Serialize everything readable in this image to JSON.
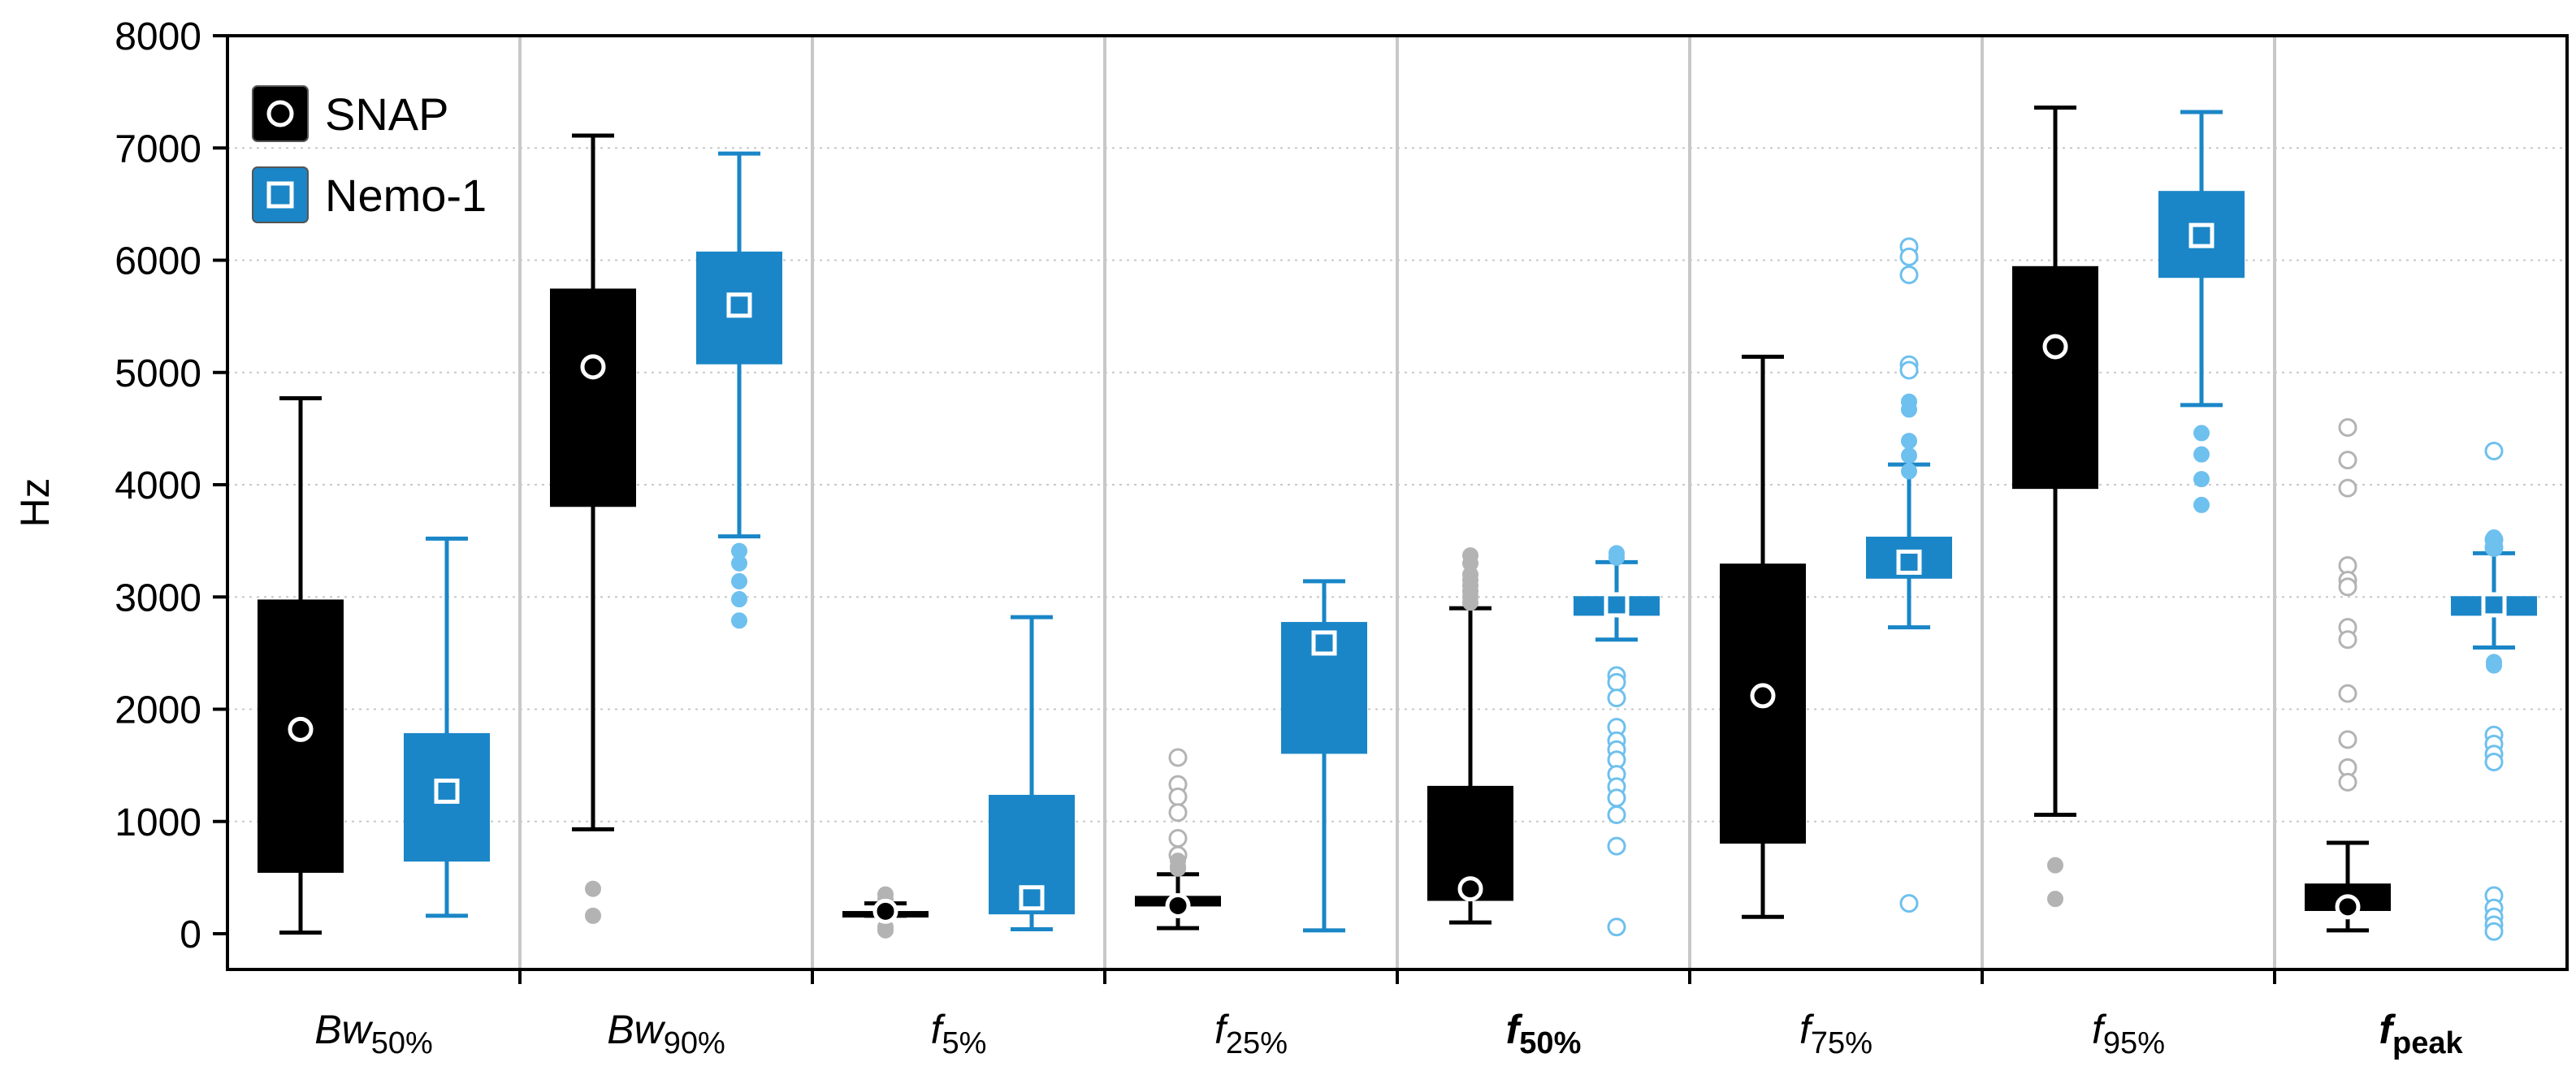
{
  "chart_data": {
    "type": "boxplot",
    "ylabel": "Hz",
    "ylim": [
      0,
      8000
    ],
    "yticks": [
      0,
      1000,
      2000,
      3000,
      4000,
      5000,
      6000,
      7000,
      8000
    ],
    "grid": "horizontal dotted + vertical group separators",
    "legend_position": "top-left",
    "categories": [
      {
        "label": "Bw",
        "sub": "50%",
        "style": "italic"
      },
      {
        "label": "Bw",
        "sub": "90%",
        "style": "italic"
      },
      {
        "label": "f",
        "sub": "5%",
        "style": "italic"
      },
      {
        "label": "f",
        "sub": "25%",
        "style": "italic"
      },
      {
        "label": "f",
        "sub": "50%",
        "style": "bold-italic"
      },
      {
        "label": "f",
        "sub": "75%",
        "style": "italic"
      },
      {
        "label": "f",
        "sub": "95%",
        "style": "italic"
      },
      {
        "label": "f",
        "sub": "peak",
        "style": "bold-italic"
      }
    ],
    "series": [
      {
        "name": "SNAP",
        "color": "#000000",
        "outlier_color": "#b3b3b3",
        "marker": "circle",
        "boxes": [
          {
            "whisker_low": 10,
            "q1": 550,
            "q3": 2970,
            "whisker_high": 4770,
            "mean": 1820,
            "outliers": [],
            "outliers_filled": []
          },
          {
            "whisker_low": 930,
            "q1": 3810,
            "q3": 5740,
            "whisker_high": 7110,
            "mean": 5050,
            "outliers": [],
            "outliers_filled": [
              400,
              160
            ]
          },
          {
            "whisker_low": 160,
            "q1": 175,
            "q3": 195,
            "whisker_high": 270,
            "mean": 200,
            "outliers": [],
            "outliers_filled": [
              350,
              310,
              60,
              30
            ]
          },
          {
            "whisker_low": 50,
            "q1": 250,
            "q3": 330,
            "whisker_high": 530,
            "mean": 250,
            "outliers": [
              1570,
              1330,
              1220,
              1080,
              850,
              700
            ],
            "outliers_filled": [
              650,
              600,
              580
            ]
          },
          {
            "whisker_low": 100,
            "q1": 300,
            "q3": 1310,
            "whisker_high": 2900,
            "mean": 400,
            "outliers": [],
            "outliers_filled": [
              3370,
              3300,
              3200,
              3150,
              3100,
              3050,
              3000,
              2950
            ]
          },
          {
            "whisker_low": 150,
            "q1": 810,
            "q3": 3290,
            "whisker_high": 5140,
            "mean": 2120,
            "outliers": [],
            "outliers_filled": []
          },
          {
            "whisker_low": 1060,
            "q1": 3970,
            "q3": 5940,
            "whisker_high": 7360,
            "mean": 5230,
            "outliers": [],
            "outliers_filled": [
              610,
              310
            ]
          },
          {
            "whisker_low": 30,
            "q1": 210,
            "q3": 440,
            "whisker_high": 810,
            "mean": 240,
            "outliers": [
              4510,
              4220,
              3970,
              3280,
              3150,
              3090,
              2730,
              2620,
              2140,
              1730,
              1480,
              1350
            ],
            "outliers_filled": []
          }
        ]
      },
      {
        "name": "Nemo-1",
        "color": "#1a86c7",
        "outlier_color": "#6ec0ee",
        "marker": "square",
        "boxes": [
          {
            "whisker_low": 160,
            "q1": 650,
            "q3": 1780,
            "whisker_high": 3520,
            "mean": 1270,
            "outliers": [],
            "outliers_filled": []
          },
          {
            "whisker_low": 3540,
            "q1": 5080,
            "q3": 6070,
            "whisker_high": 6950,
            "mean": 5600,
            "outliers": [],
            "outliers_filled": [
              3410,
              3300,
              3140,
              2980,
              2790
            ]
          },
          {
            "whisker_low": 40,
            "q1": 180,
            "q3": 1230,
            "whisker_high": 2820,
            "mean": 320,
            "outliers": [],
            "outliers_filled": []
          },
          {
            "whisker_low": 30,
            "q1": 1610,
            "q3": 2770,
            "whisker_high": 3140,
            "mean": 2590,
            "outliers": [],
            "outliers_filled": []
          },
          {
            "whisker_low": 2620,
            "q1": 2840,
            "q3": 3000,
            "whisker_high": 3310,
            "mean": 2930,
            "outliers": [
              2300,
              2240,
              2100,
              1840,
              1720,
              1640,
              1550,
              1420,
              1310,
              1210,
              1060,
              780,
              60
            ],
            "outliers_filled": [
              3390,
              3350
            ]
          },
          {
            "whisker_low": 2730,
            "q1": 3170,
            "q3": 3530,
            "whisker_high": 4180,
            "mean": 3310,
            "outliers": [
              6120,
              6030,
              5870,
              5070,
              5020,
              270
            ],
            "outliers_filled": [
              4740,
              4670,
              4390,
              4260,
              4120
            ]
          },
          {
            "whisker_low": 4710,
            "q1": 5850,
            "q3": 6610,
            "whisker_high": 7320,
            "mean": 6220,
            "outliers": [],
            "outliers_filled": [
              4460,
              4270,
              4050,
              3820
            ]
          },
          {
            "whisker_low": 2550,
            "q1": 2840,
            "q3": 3000,
            "whisker_high": 3390,
            "mean": 2930,
            "outliers": [
              4300,
              3510,
              3440,
              1770,
              1690,
              1600,
              1530,
              340,
              230,
              150,
              80,
              20
            ],
            "outliers_filled": [
              3530,
              3490,
              3450,
              2420,
              2390
            ]
          }
        ]
      }
    ]
  }
}
